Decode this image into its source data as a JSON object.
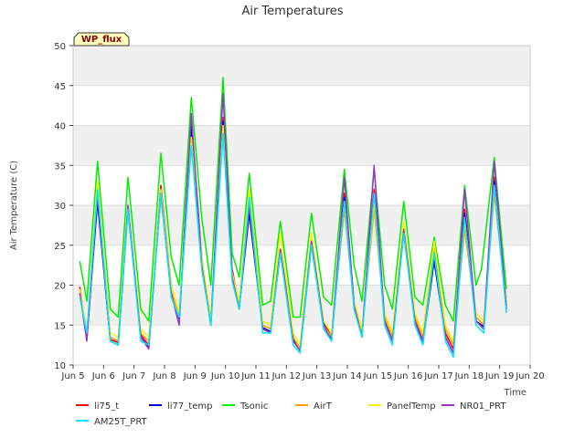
{
  "chart_data": {
    "type": "line",
    "title": "Air Temperatures",
    "xlabel": "Time",
    "ylabel": "Air Temperature (C)",
    "annotation": "WP_flux",
    "xlim": [
      5.0,
      20.0
    ],
    "ylim": [
      10,
      50
    ],
    "x_ticks": [
      5,
      6,
      7,
      8,
      9,
      10,
      11,
      12,
      13,
      14,
      15,
      16,
      17,
      18,
      19,
      20
    ],
    "x_tick_labels": [
      "Jun 5",
      "Jun 6",
      "Jun 7",
      "Jun 8",
      "Jun 9",
      "Jun 10",
      "Jun 11",
      "Jun 12",
      "Jun 13",
      "Jun 14",
      "Jun 15",
      "Jun 16",
      "Jun 17",
      "Jun 18",
      "Jun 19",
      "Jun 20"
    ],
    "y_ticks": [
      10,
      15,
      20,
      25,
      30,
      35,
      40,
      45,
      50
    ],
    "grid": true,
    "banded_background": true,
    "legend_position": "bottom",
    "x_unit": "day of June",
    "series": [
      {
        "name": "li75_t",
        "color": "#ff0000",
        "values": [
          [
            5.22,
            19.8
          ],
          [
            5.45,
            13.5
          ],
          [
            5.8,
            31.0
          ],
          [
            6.22,
            13.2
          ],
          [
            6.48,
            12.8
          ],
          [
            6.8,
            30.0
          ],
          [
            7.22,
            13.8
          ],
          [
            7.48,
            12.5
          ],
          [
            7.88,
            32.5
          ],
          [
            8.22,
            20.0
          ],
          [
            8.48,
            16.0
          ],
          [
            8.88,
            40.5
          ],
          [
            9.22,
            23.5
          ],
          [
            9.52,
            15.5
          ],
          [
            9.92,
            41.0
          ],
          [
            10.22,
            22.0
          ],
          [
            10.45,
            17.5
          ],
          [
            10.78,
            29.5
          ],
          [
            11.22,
            15.0
          ],
          [
            11.48,
            14.5
          ],
          [
            11.8,
            24.5
          ],
          [
            12.22,
            13.5
          ],
          [
            12.45,
            12.0
          ],
          [
            12.82,
            25.5
          ],
          [
            13.22,
            15.5
          ],
          [
            13.48,
            13.5
          ],
          [
            13.9,
            31.5
          ],
          [
            14.22,
            18.0
          ],
          [
            14.48,
            14.0
          ],
          [
            14.88,
            32.0
          ],
          [
            15.22,
            16.0
          ],
          [
            15.48,
            13.5
          ],
          [
            15.85,
            27.0
          ],
          [
            16.22,
            16.0
          ],
          [
            16.48,
            13.0
          ],
          [
            16.85,
            23.5
          ],
          [
            17.22,
            14.0
          ],
          [
            17.48,
            12.0
          ],
          [
            17.85,
            29.5
          ],
          [
            18.22,
            16.0
          ],
          [
            18.48,
            15.0
          ],
          [
            18.82,
            33.5
          ],
          [
            19.22,
            18.0
          ]
        ]
      },
      {
        "name": "li77_temp",
        "color": "#0000cc",
        "values": [
          [
            5.22,
            19.5
          ],
          [
            5.45,
            13.3
          ],
          [
            5.8,
            30.5
          ],
          [
            6.22,
            13.0
          ],
          [
            6.48,
            12.5
          ],
          [
            6.8,
            29.5
          ],
          [
            7.22,
            13.5
          ],
          [
            7.48,
            12.2
          ],
          [
            7.88,
            32.0
          ],
          [
            8.22,
            19.5
          ],
          [
            8.48,
            15.8
          ],
          [
            8.88,
            40.0
          ],
          [
            9.22,
            23.0
          ],
          [
            9.52,
            15.2
          ],
          [
            9.92,
            40.5
          ],
          [
            10.22,
            21.5
          ],
          [
            10.45,
            17.2
          ],
          [
            10.78,
            29.0
          ],
          [
            11.22,
            14.7
          ],
          [
            11.48,
            14.2
          ],
          [
            11.8,
            24.0
          ],
          [
            12.22,
            13.2
          ],
          [
            12.45,
            11.8
          ],
          [
            12.82,
            25.0
          ],
          [
            13.22,
            15.2
          ],
          [
            13.48,
            13.2
          ],
          [
            13.9,
            31.0
          ],
          [
            14.22,
            17.5
          ],
          [
            14.48,
            13.7
          ],
          [
            14.88,
            31.5
          ],
          [
            15.22,
            15.5
          ],
          [
            15.48,
            13.2
          ],
          [
            15.85,
            26.5
          ],
          [
            16.22,
            15.5
          ],
          [
            16.48,
            12.8
          ],
          [
            16.85,
            23.0
          ],
          [
            17.22,
            13.5
          ],
          [
            17.48,
            11.5
          ],
          [
            17.85,
            29.0
          ],
          [
            18.22,
            15.5
          ],
          [
            18.48,
            14.8
          ],
          [
            18.82,
            33.0
          ],
          [
            19.22,
            17.5
          ]
        ]
      },
      {
        "name": "Tsonic",
        "color": "#00ee00",
        "values": [
          [
            5.22,
            23.0
          ],
          [
            5.45,
            18.0
          ],
          [
            5.8,
            35.5
          ],
          [
            6.22,
            17.0
          ],
          [
            6.48,
            16.0
          ],
          [
            6.8,
            33.5
          ],
          [
            7.22,
            17.0
          ],
          [
            7.48,
            15.5
          ],
          [
            7.88,
            36.5
          ],
          [
            8.22,
            23.5
          ],
          [
            8.48,
            20.0
          ],
          [
            8.88,
            43.5
          ],
          [
            9.22,
            28.5
          ],
          [
            9.52,
            20.0
          ],
          [
            9.92,
            46.0
          ],
          [
            10.22,
            24.0
          ],
          [
            10.45,
            21.0
          ],
          [
            10.78,
            34.0
          ],
          [
            11.22,
            17.5
          ],
          [
            11.48,
            18.0
          ],
          [
            11.8,
            28.0
          ],
          [
            12.22,
            16.0
          ],
          [
            12.45,
            16.0
          ],
          [
            12.82,
            29.0
          ],
          [
            13.22,
            18.5
          ],
          [
            13.48,
            17.5
          ],
          [
            13.9,
            34.5
          ],
          [
            14.22,
            22.5
          ],
          [
            14.48,
            18.0
          ],
          [
            14.88,
            34.5
          ],
          [
            15.22,
            20.0
          ],
          [
            15.48,
            17.0
          ],
          [
            15.85,
            30.5
          ],
          [
            16.22,
            18.5
          ],
          [
            16.48,
            17.5
          ],
          [
            16.85,
            26.0
          ],
          [
            17.22,
            17.5
          ],
          [
            17.48,
            15.5
          ],
          [
            17.85,
            32.5
          ],
          [
            18.22,
            20.0
          ],
          [
            18.4,
            22.0
          ],
          [
            18.82,
            36.0
          ],
          [
            19.22,
            19.5
          ]
        ]
      },
      {
        "name": "AirT",
        "color": "#ffa500",
        "values": [
          [
            5.22,
            19.0
          ],
          [
            5.45,
            13.5
          ],
          [
            5.8,
            32.0
          ],
          [
            6.22,
            13.5
          ],
          [
            6.48,
            13.0
          ],
          [
            6.8,
            29.0
          ],
          [
            7.22,
            14.0
          ],
          [
            7.48,
            13.0
          ],
          [
            7.88,
            31.0
          ],
          [
            8.22,
            19.5
          ],
          [
            8.48,
            16.0
          ],
          [
            8.88,
            38.0
          ],
          [
            9.22,
            23.0
          ],
          [
            9.52,
            15.5
          ],
          [
            9.92,
            39.5
          ],
          [
            10.22,
            21.0
          ],
          [
            10.45,
            17.5
          ],
          [
            10.78,
            31.5
          ],
          [
            11.22,
            15.0
          ],
          [
            11.48,
            14.5
          ],
          [
            11.8,
            24.0
          ],
          [
            12.22,
            13.5
          ],
          [
            12.45,
            12.0
          ],
          [
            12.82,
            25.0
          ],
          [
            13.22,
            15.0
          ],
          [
            13.48,
            13.5
          ],
          [
            13.9,
            29.5
          ],
          [
            14.22,
            17.5
          ],
          [
            14.48,
            14.0
          ],
          [
            14.88,
            29.5
          ],
          [
            15.22,
            16.0
          ],
          [
            15.48,
            13.5
          ],
          [
            15.85,
            27.5
          ],
          [
            16.22,
            16.0
          ],
          [
            16.48,
            13.5
          ],
          [
            16.85,
            24.5
          ],
          [
            17.22,
            14.5
          ],
          [
            17.48,
            12.5
          ],
          [
            17.85,
            27.0
          ],
          [
            18.22,
            16.0
          ],
          [
            18.48,
            15.0
          ],
          [
            18.82,
            31.5
          ],
          [
            19.22,
            17.5
          ]
        ]
      },
      {
        "name": "PanelTemp",
        "color": "#ffee00",
        "values": [
          [
            5.22,
            19.5
          ],
          [
            5.45,
            14.0
          ],
          [
            5.8,
            33.0
          ],
          [
            6.22,
            14.0
          ],
          [
            6.48,
            13.5
          ],
          [
            6.8,
            30.0
          ],
          [
            7.22,
            14.5
          ],
          [
            7.48,
            13.5
          ],
          [
            7.88,
            32.0
          ],
          [
            8.22,
            20.0
          ],
          [
            8.48,
            16.5
          ],
          [
            8.88,
            38.5
          ],
          [
            9.22,
            23.5
          ],
          [
            9.52,
            16.0
          ],
          [
            9.92,
            40.0
          ],
          [
            10.22,
            21.5
          ],
          [
            10.45,
            18.0
          ],
          [
            10.78,
            32.0
          ],
          [
            11.22,
            15.5
          ],
          [
            11.48,
            15.0
          ],
          [
            11.8,
            26.5
          ],
          [
            12.22,
            14.0
          ],
          [
            12.45,
            12.5
          ],
          [
            12.82,
            26.5
          ],
          [
            13.22,
            15.5
          ],
          [
            13.48,
            14.0
          ],
          [
            13.9,
            30.5
          ],
          [
            14.22,
            18.0
          ],
          [
            14.48,
            14.5
          ],
          [
            14.88,
            30.5
          ],
          [
            15.22,
            16.5
          ],
          [
            15.48,
            14.0
          ],
          [
            15.85,
            28.0
          ],
          [
            16.22,
            16.5
          ],
          [
            16.48,
            14.0
          ],
          [
            16.85,
            25.5
          ],
          [
            17.22,
            15.0
          ],
          [
            17.48,
            13.0
          ],
          [
            17.85,
            28.0
          ],
          [
            18.22,
            16.5
          ],
          [
            18.48,
            15.5
          ],
          [
            18.82,
            32.5
          ],
          [
            19.22,
            18.0
          ]
        ]
      },
      {
        "name": "NR01_PRT",
        "color": "#9933cc",
        "values": [
          [
            5.22,
            19.0
          ],
          [
            5.45,
            13.0
          ],
          [
            5.8,
            31.5
          ],
          [
            6.22,
            13.0
          ],
          [
            6.48,
            12.5
          ],
          [
            6.8,
            30.0
          ],
          [
            7.22,
            13.5
          ],
          [
            7.48,
            12.0
          ],
          [
            7.88,
            31.5
          ],
          [
            8.22,
            19.0
          ],
          [
            8.48,
            15.0
          ],
          [
            8.88,
            41.5
          ],
          [
            9.22,
            22.5
          ],
          [
            9.52,
            15.0
          ],
          [
            9.92,
            44.0
          ],
          [
            10.22,
            21.0
          ],
          [
            10.45,
            17.0
          ],
          [
            10.78,
            30.0
          ],
          [
            11.22,
            14.5
          ],
          [
            11.48,
            14.0
          ],
          [
            11.8,
            24.5
          ],
          [
            12.22,
            13.0
          ],
          [
            12.45,
            11.8
          ],
          [
            12.82,
            25.5
          ],
          [
            13.22,
            15.0
          ],
          [
            13.48,
            13.0
          ],
          [
            13.9,
            33.5
          ],
          [
            14.22,
            17.5
          ],
          [
            14.48,
            13.5
          ],
          [
            14.88,
            35.0
          ],
          [
            15.22,
            15.5
          ],
          [
            15.48,
            13.0
          ],
          [
            15.85,
            27.0
          ],
          [
            16.22,
            15.5
          ],
          [
            16.48,
            13.0
          ],
          [
            16.85,
            24.0
          ],
          [
            17.22,
            13.5
          ],
          [
            17.48,
            11.5
          ],
          [
            17.85,
            32.0
          ],
          [
            18.22,
            15.5
          ],
          [
            18.48,
            14.5
          ],
          [
            18.82,
            35.5
          ],
          [
            19.22,
            17.0
          ]
        ]
      },
      {
        "name": "AM25T_PRT",
        "color": "#00e5ff",
        "values": [
          [
            5.22,
            18.5
          ],
          [
            5.45,
            14.0
          ],
          [
            5.8,
            32.0
          ],
          [
            6.22,
            13.0
          ],
          [
            6.48,
            12.5
          ],
          [
            6.8,
            29.5
          ],
          [
            7.22,
            13.0
          ],
          [
            7.48,
            12.5
          ],
          [
            7.88,
            31.5
          ],
          [
            8.22,
            18.5
          ],
          [
            8.48,
            16.0
          ],
          [
            8.88,
            37.5
          ],
          [
            9.22,
            22.0
          ],
          [
            9.52,
            15.0
          ],
          [
            9.92,
            39.0
          ],
          [
            10.22,
            20.5
          ],
          [
            10.45,
            17.0
          ],
          [
            10.78,
            31.0
          ],
          [
            11.22,
            14.0
          ],
          [
            11.48,
            14.0
          ],
          [
            11.8,
            24.0
          ],
          [
            12.22,
            12.5
          ],
          [
            12.45,
            11.5
          ],
          [
            12.82,
            25.0
          ],
          [
            13.22,
            14.5
          ],
          [
            13.48,
            13.0
          ],
          [
            13.9,
            30.5
          ],
          [
            14.22,
            17.0
          ],
          [
            14.48,
            13.5
          ],
          [
            14.88,
            31.5
          ],
          [
            15.22,
            15.0
          ],
          [
            15.48,
            12.5
          ],
          [
            15.85,
            26.5
          ],
          [
            16.22,
            15.0
          ],
          [
            16.48,
            12.5
          ],
          [
            16.85,
            24.0
          ],
          [
            17.22,
            13.0
          ],
          [
            17.48,
            11.0
          ],
          [
            17.85,
            28.5
          ],
          [
            18.22,
            15.0
          ],
          [
            18.48,
            14.0
          ],
          [
            18.82,
            32.5
          ],
          [
            19.22,
            16.5
          ]
        ]
      }
    ]
  }
}
